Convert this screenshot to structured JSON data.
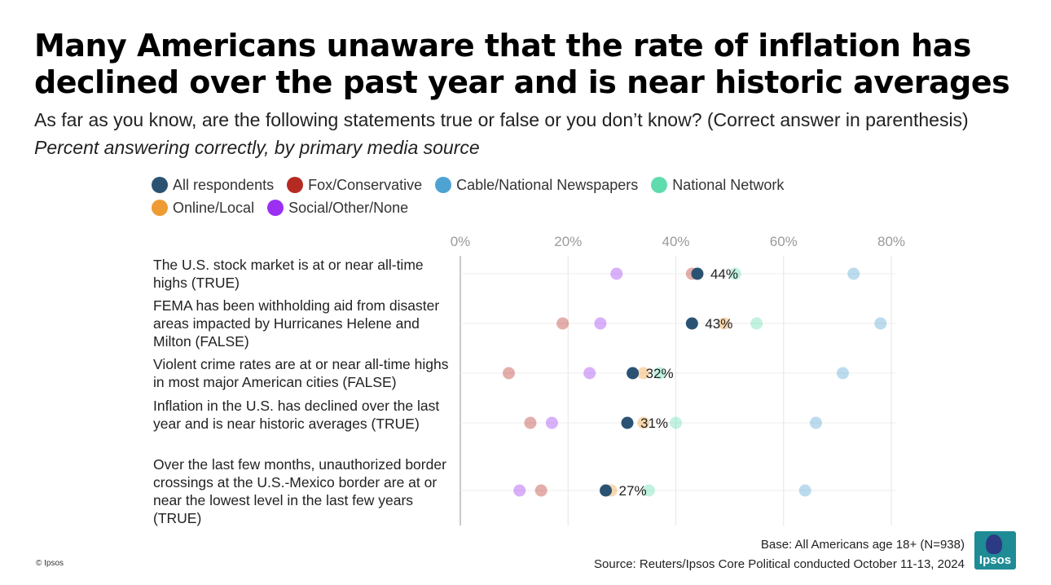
{
  "header": {
    "title": "Many Americans unaware that the rate of inflation has declined over the past year and is near historic averages",
    "subtitle": "As far as you know, are the following statements true or false or you don’t know? (Correct answer in parenthesis)",
    "subtitle2": "Percent answering correctly, by primary media source"
  },
  "legend": [
    {
      "label": "All respondents",
      "color": "#2a5373"
    },
    {
      "label": "Fox/Conservative",
      "color": "#b52b23"
    },
    {
      "label": "Cable/National Newspapers",
      "color": "#4ea3d3"
    },
    {
      "label": "National Network",
      "color": "#5fdcae"
    },
    {
      "label": "Online/Local",
      "color": "#ef9b33"
    },
    {
      "label": "Social/Other/None",
      "color": "#9b30f2"
    }
  ],
  "chart_data": {
    "type": "scatter",
    "xlim": [
      0,
      80
    ],
    "x_ticks": [
      "0%",
      "20%",
      "40%",
      "60%",
      "80%"
    ],
    "x_tick_values": [
      0,
      20,
      40,
      60,
      80
    ],
    "grid": true,
    "legend_position": "top",
    "categories": [
      "The U.S. stock market is at or near all-time highs (TRUE)",
      "FEMA has been withholding aid from disaster areas impacted by Hurricanes Helene and Milton (FALSE)",
      "Violent crime rates are at or near all-time highs in most major American cities (FALSE)",
      "Inflation in the U.S. has declined over the last year and is near historic averages (TRUE)",
      "Over the last few months, unauthorized border crossings at the U.S.-Mexico border are at or near the lowest level in the last few years (TRUE)"
    ],
    "series": [
      {
        "name": "Fox/Conservative",
        "values": [
          43,
          19,
          9,
          13,
          15
        ]
      },
      {
        "name": "Cable/National Newspapers",
        "values": [
          73,
          78,
          71,
          66,
          64
        ]
      },
      {
        "name": "National Network",
        "values": [
          51,
          55,
          37,
          40,
          35
        ]
      },
      {
        "name": "Online/Local",
        "values": [
          44,
          49,
          34,
          34,
          28
        ]
      },
      {
        "name": "Social/Other/None",
        "values": [
          29,
          26,
          24,
          17,
          11
        ]
      },
      {
        "name": "All respondents",
        "values": [
          44,
          43,
          32,
          31,
          27
        ]
      }
    ],
    "data_labels": [
      "44%",
      "43%",
      "32%",
      "31%",
      "27%"
    ]
  },
  "footer": {
    "base": "Base: All Americans age 18+ (N=938)",
    "source": "Source: Reuters/Ipsos Core Political conducted October 11-13, 2024",
    "copyright": "© Ipsos",
    "logo_text": "Ipsos"
  }
}
